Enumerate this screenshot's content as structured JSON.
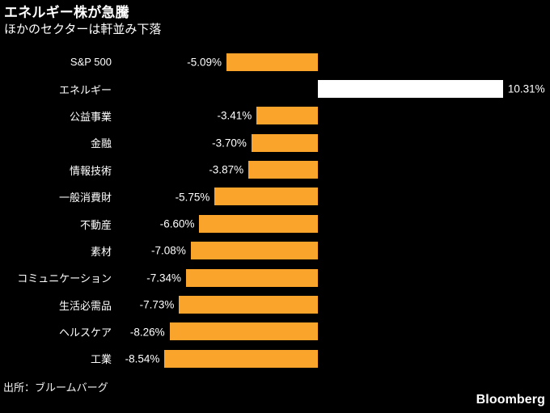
{
  "header": {
    "title": "エネルギー株が急騰",
    "subtitle": "ほかのセクターは軒並み下落"
  },
  "footer": {
    "source": "出所：ブルームバーグ",
    "brand": "Bloomberg"
  },
  "colors": {
    "background": "#000000",
    "text": "#FFFFFF",
    "bar_default": "#FBA42C",
    "bar_highlight": "#FFFFFF"
  },
  "chart_data": {
    "type": "bar",
    "orientation": "horizontal",
    "title": "エネルギー株が急騰",
    "subtitle": "ほかのセクターは軒並み下落",
    "unit": "%",
    "xlim": [
      -11.5,
      12.9
    ],
    "grid": false,
    "legend": "none",
    "value_axis_zero_anchor": true,
    "series": [
      {
        "category": "S&P 500",
        "value": -5.09,
        "display": "-5.09%",
        "highlight": false
      },
      {
        "category": "エネルギー",
        "value": 10.31,
        "display": "10.31%",
        "highlight": true
      },
      {
        "category": "公益事業",
        "value": -3.41,
        "display": "-3.41%",
        "highlight": false
      },
      {
        "category": "金融",
        "value": -3.7,
        "display": "-3.70%",
        "highlight": false
      },
      {
        "category": "情報技術",
        "value": -3.87,
        "display": "-3.87%",
        "highlight": false
      },
      {
        "category": "一般消費財",
        "value": -5.75,
        "display": "-5.75%",
        "highlight": false
      },
      {
        "category": "不動産",
        "value": -6.6,
        "display": "-6.60%",
        "highlight": false
      },
      {
        "category": "素材",
        "value": -7.08,
        "display": "-7.08%",
        "highlight": false
      },
      {
        "category": "コミュニケーション",
        "value": -7.34,
        "display": "-7.34%",
        "highlight": false
      },
      {
        "category": "生活必需品",
        "value": -7.73,
        "display": "-7.73%",
        "highlight": false
      },
      {
        "category": "ヘルスケア",
        "value": -8.26,
        "display": "-8.26%",
        "highlight": false
      },
      {
        "category": "工業",
        "value": -8.54,
        "display": "-8.54%",
        "highlight": false
      }
    ]
  }
}
